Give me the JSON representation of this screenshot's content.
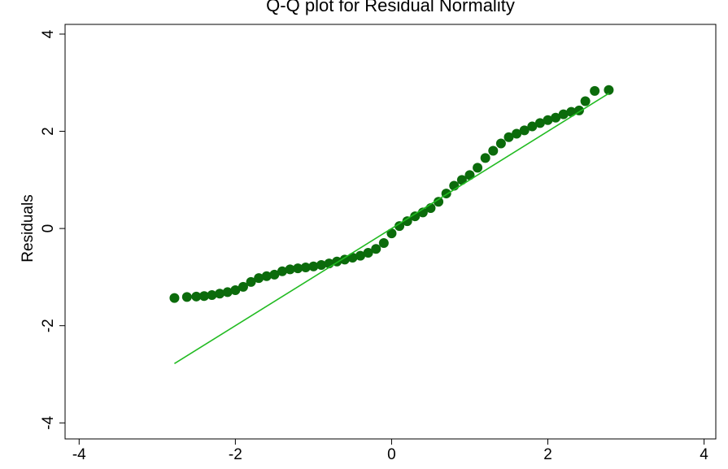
{
  "chart_data": {
    "type": "scatter",
    "title": "Q-Q plot for Residual Normality",
    "ylabel": "Residuals",
    "xlim": [
      -4.18,
      4.15
    ],
    "ylim": [
      -4.33,
      4.2
    ],
    "xticks": [
      -4,
      -2,
      0,
      2,
      4
    ],
    "yticks": [
      -4,
      -2,
      0,
      2,
      4
    ],
    "series": [
      {
        "marker": "point",
        "color": "#0b6b0b",
        "x": [
          -2.78,
          -2.62,
          -2.5,
          -2.4,
          -2.3,
          -2.2,
          -2.1,
          -2.0,
          -1.9,
          -1.8,
          -1.7,
          -1.6,
          -1.5,
          -1.4,
          -1.3,
          -1.2,
          -1.1,
          -1.0,
          -0.9,
          -0.8,
          -0.7,
          -0.6,
          -0.5,
          -0.4,
          -0.3,
          -0.2,
          -0.1,
          0,
          0.1,
          0.2,
          0.3,
          0.4,
          0.5,
          0.6,
          0.7,
          0.8,
          0.9,
          1.0,
          1.1,
          1.2,
          1.3,
          1.4,
          1.5,
          1.6,
          1.7,
          1.8,
          1.9,
          2.0,
          2.1,
          2.2,
          2.3,
          2.4,
          2.48,
          2.6,
          2.78
        ],
        "values": [
          -1.43,
          -1.41,
          -1.4,
          -1.39,
          -1.37,
          -1.34,
          -1.31,
          -1.27,
          -1.2,
          -1.1,
          -1.02,
          -0.98,
          -0.95,
          -0.88,
          -0.84,
          -0.82,
          -0.8,
          -0.78,
          -0.75,
          -0.72,
          -0.68,
          -0.64,
          -0.6,
          -0.56,
          -0.5,
          -0.42,
          -0.3,
          -0.1,
          0.05,
          0.15,
          0.25,
          0.33,
          0.42,
          0.55,
          0.72,
          0.88,
          1.0,
          1.1,
          1.25,
          1.45,
          1.6,
          1.75,
          1.88,
          1.95,
          2.02,
          2.1,
          2.17,
          2.23,
          2.28,
          2.35,
          2.4,
          2.43,
          2.62,
          2.83,
          2.85
        ]
      },
      {
        "marker": "line",
        "color": "#22bb22",
        "x": [
          -2.78,
          2.78
        ],
        "values": [
          -2.78,
          2.78
        ]
      }
    ]
  }
}
